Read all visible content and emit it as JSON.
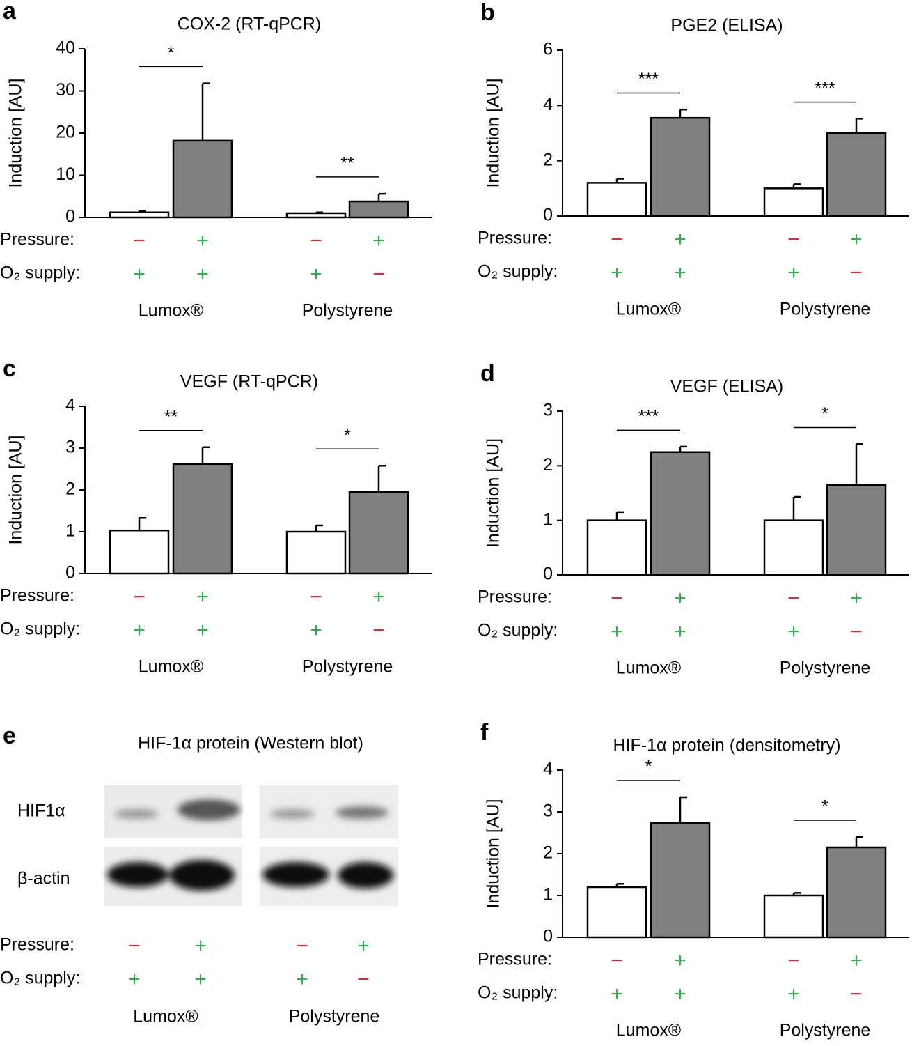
{
  "sign_colors": {
    "+": "#2db34a",
    "−": "#e8262b"
  },
  "chart_data": [
    {
      "type": "bar",
      "panel": "a",
      "title": "COX-2 (RT-qPCR)",
      "ylabel": "Induction [AU]",
      "ylim": [
        0,
        40
      ],
      "yticks": [
        0,
        10,
        20,
        30,
        40
      ],
      "values": [
        1.2,
        18.2,
        1.0,
        3.8
      ],
      "errors": [
        0.4,
        13.6,
        0.2,
        1.8
      ],
      "colors": [
        "#ffffff",
        "#808080",
        "#ffffff",
        "#808080"
      ],
      "rows": [
        {
          "label": "Pressure:",
          "signs": [
            "−",
            "+",
            "−",
            "+"
          ]
        },
        {
          "label": "O₂ supply:",
          "signs": [
            "+",
            "+",
            "+",
            "−"
          ]
        }
      ],
      "groups": [
        "Lumox®",
        "Polystyrene"
      ],
      "significance": [
        "*",
        "**"
      ]
    },
    {
      "type": "bar",
      "panel": "b",
      "title": "PGE2 (ELISA)",
      "ylabel": "Induction [AU]",
      "ylim": [
        0,
        6
      ],
      "yticks": [
        0,
        2,
        4,
        6
      ],
      "values": [
        1.2,
        3.55,
        1.0,
        3.0
      ],
      "errors": [
        0.15,
        0.3,
        0.15,
        0.52
      ],
      "colors": [
        "#ffffff",
        "#808080",
        "#ffffff",
        "#808080"
      ],
      "rows": [
        {
          "label": "Pressure:",
          "signs": [
            "−",
            "+",
            "−",
            "+"
          ]
        },
        {
          "label": "O₂ supply:",
          "signs": [
            "+",
            "+",
            "+",
            "−"
          ]
        }
      ],
      "groups": [
        "Lumox®",
        "Polystyrene"
      ],
      "significance": [
        "***",
        "***"
      ]
    },
    {
      "type": "bar",
      "panel": "c",
      "title": "VEGF (RT-qPCR)",
      "ylabel": "Induction [AU]",
      "ylim": [
        0,
        4
      ],
      "yticks": [
        0,
        1,
        2,
        3,
        4
      ],
      "values": [
        1.03,
        2.62,
        1.0,
        1.95
      ],
      "errors": [
        0.3,
        0.4,
        0.15,
        0.63
      ],
      "colors": [
        "#ffffff",
        "#808080",
        "#ffffff",
        "#808080"
      ],
      "rows": [
        {
          "label": "Pressure:",
          "signs": [
            "−",
            "+",
            "−",
            "+"
          ]
        },
        {
          "label": "O₂ supply:",
          "signs": [
            "+",
            "+",
            "+",
            "−"
          ]
        }
      ],
      "groups": [
        "Lumox®",
        "Polystyrene"
      ],
      "significance": [
        "**",
        "*"
      ]
    },
    {
      "type": "bar",
      "panel": "d",
      "title": "VEGF (ELISA)",
      "ylabel": "Induction [AU]",
      "ylim": [
        0,
        3
      ],
      "yticks": [
        0,
        1,
        2,
        3
      ],
      "values": [
        1.0,
        2.25,
        1.0,
        1.65
      ],
      "errors": [
        0.15,
        0.1,
        0.43,
        0.75
      ],
      "colors": [
        "#ffffff",
        "#808080",
        "#ffffff",
        "#808080"
      ],
      "rows": [
        {
          "label": "Pressure:",
          "signs": [
            "−",
            "+",
            "−",
            "+"
          ]
        },
        {
          "label": "O₂ supply:",
          "signs": [
            "+",
            "+",
            "+",
            "−"
          ]
        }
      ],
      "groups": [
        "Lumox®",
        "Polystyrene"
      ],
      "significance": [
        "***",
        "*"
      ]
    },
    {
      "type": "bar",
      "panel": "f",
      "title": "HIF-1α protein (densitometry)",
      "ylabel": "Induction [AU]",
      "ylim": [
        0,
        4
      ],
      "yticks": [
        0,
        1,
        2,
        3,
        4
      ],
      "values": [
        1.2,
        2.73,
        1.0,
        2.15
      ],
      "errors": [
        0.08,
        0.62,
        0.06,
        0.25
      ],
      "colors": [
        "#ffffff",
        "#808080",
        "#ffffff",
        "#808080"
      ],
      "rows": [
        {
          "label": "Pressure:",
          "signs": [
            "−",
            "+",
            "−",
            "+"
          ]
        },
        {
          "label": "O₂ supply:",
          "signs": [
            "+",
            "+",
            "+",
            "−"
          ]
        }
      ],
      "groups": [
        "Lumox®",
        "Polystyrene"
      ],
      "significance": [
        "*",
        "*"
      ]
    }
  ],
  "blot": {
    "panel": "e",
    "title": "HIF-1α protein (Western blot)",
    "bands": [
      "HIF1α",
      "β-actin"
    ],
    "rows": [
      {
        "label": "Pressure:",
        "signs": [
          "−",
          "+",
          "−",
          "+"
        ]
      },
      {
        "label": "O₂ supply:",
        "signs": [
          "+",
          "+",
          "+",
          "−"
        ]
      }
    ],
    "groups": [
      "Lumox®",
      "Polystyrene"
    ]
  }
}
